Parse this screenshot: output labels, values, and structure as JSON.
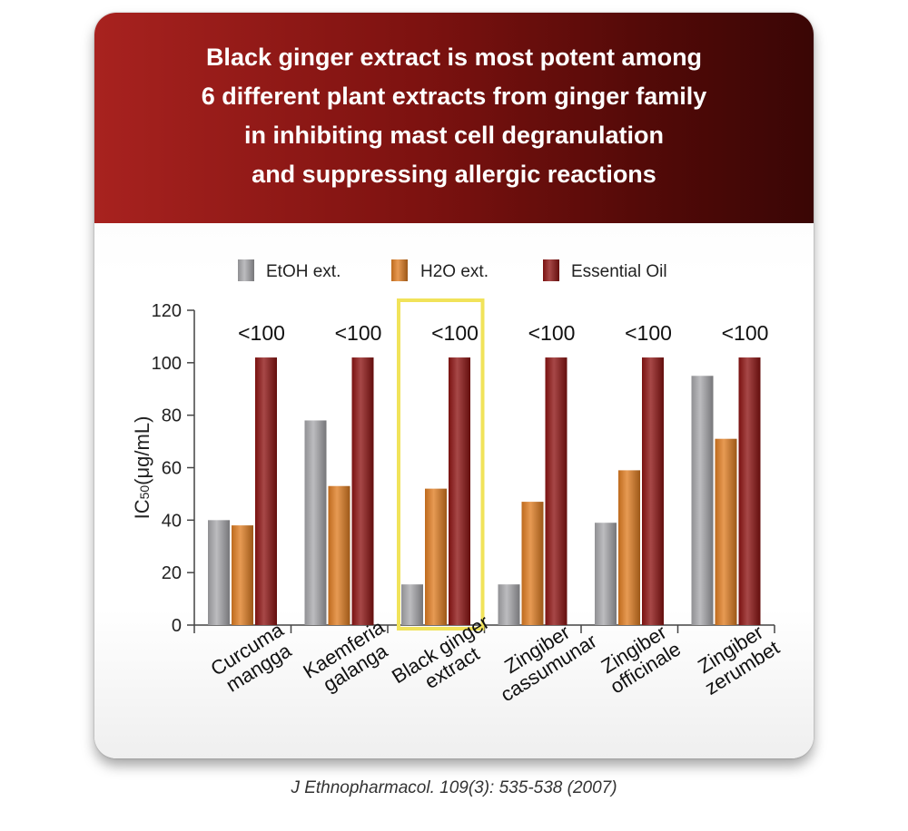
{
  "banner": {
    "lines": [
      "Black ginger extract is most potent among",
      "6 different plant extracts from ginger family",
      "in inhibiting mast cell degranulation",
      "and suppressing allergic reactions"
    ]
  },
  "citation": "J Ethnopharmacol. 109(3): 535-538 (2007)",
  "colors": {
    "etoh": "#a9a9ad",
    "h2o": "#e07d22",
    "oil": "#8e1413",
    "highlight": "#f1e35a"
  },
  "chart_data": {
    "type": "bar",
    "title": "",
    "xlabel": "",
    "ylabel_main": "IC",
    "ylabel_sub": "50",
    "ylabel_unit": "(μg/mL)",
    "ylim": [
      0,
      120
    ],
    "yticks": [
      "0",
      "20",
      "40",
      "60",
      "80",
      "100",
      "120"
    ],
    "legend_position": "top",
    "categories": [
      [
        "Curcuma",
        "mangga"
      ],
      [
        "Kaemferia",
        "galanga"
      ],
      [
        "Black ginger",
        "extract"
      ],
      [
        "Zingiber",
        "cassumunar"
      ],
      [
        "Zingiber",
        "officinale"
      ],
      [
        "Zingiber",
        "zerumbet"
      ]
    ],
    "highlighted_category_index": 2,
    "series": [
      {
        "name": "EtOH ext.",
        "color_key": "etoh",
        "values": [
          40,
          78,
          15.5,
          15.5,
          39,
          95
        ]
      },
      {
        "name": "H2O ext.",
        "color_key": "h2o",
        "values": [
          38,
          53,
          52,
          47,
          59,
          71
        ]
      },
      {
        "name": "Essential Oil",
        "color_key": "oil",
        "values": [
          102,
          102,
          102,
          102,
          102,
          102
        ]
      }
    ],
    "annotations": [
      "<100",
      "<100",
      "<100",
      "<100",
      "<100",
      "<100"
    ]
  }
}
